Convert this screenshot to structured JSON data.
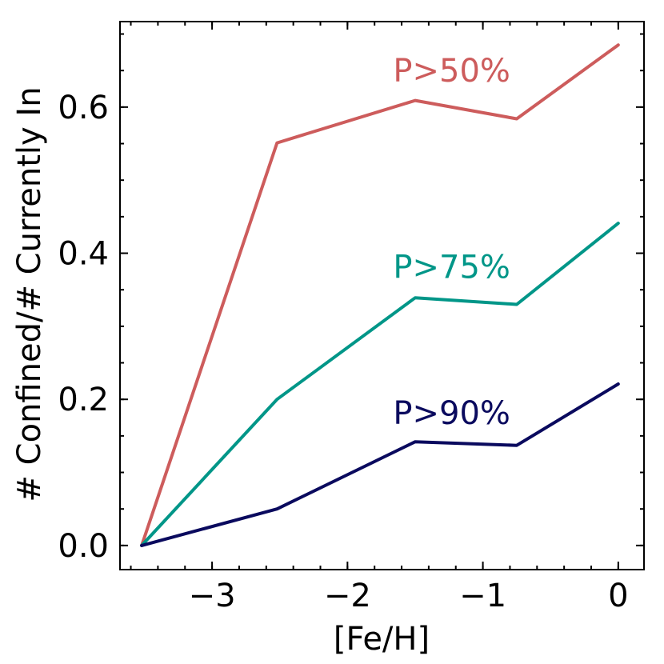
{
  "chart_data": {
    "type": "line",
    "title": "",
    "xlabel": "[Fe/H]",
    "ylabel": "# Confined/# Currently In",
    "xlim": [
      -3.68,
      0.19
    ],
    "ylim": [
      -0.033,
      0.717
    ],
    "x_ticks": [
      {
        "value": -3,
        "label": "−3"
      },
      {
        "value": -2,
        "label": "−2"
      },
      {
        "value": -1,
        "label": "−1"
      },
      {
        "value": 0,
        "label": "0"
      }
    ],
    "y_ticks": [
      {
        "value": 0.0,
        "label": "0.0"
      },
      {
        "value": 0.2,
        "label": "0.2"
      },
      {
        "value": 0.4,
        "label": "0.4"
      },
      {
        "value": 0.6,
        "label": "0.6"
      }
    ],
    "x_minor_step": 0.2,
    "y_minor_step": 0.05,
    "grid": false,
    "x": [
      -3.52,
      -2.52,
      -1.5,
      -0.75,
      0.0
    ],
    "series": [
      {
        "name": "P>50%",
        "color": "#cd5c5c",
        "values": [
          0.0,
          0.551,
          0.609,
          0.584,
          0.685
        ],
        "label_at": [
          -1.23,
          0.635
        ]
      },
      {
        "name": "P>75%",
        "color": "#009688",
        "values": [
          0.0,
          0.2,
          0.339,
          0.33,
          0.441
        ],
        "label_at": [
          -1.23,
          0.366
        ]
      },
      {
        "name": "P>90%",
        "color": "#0a0a5e",
        "values": [
          0.0,
          0.05,
          0.142,
          0.137,
          0.221
        ],
        "label_at": [
          -1.23,
          0.166
        ]
      }
    ]
  }
}
